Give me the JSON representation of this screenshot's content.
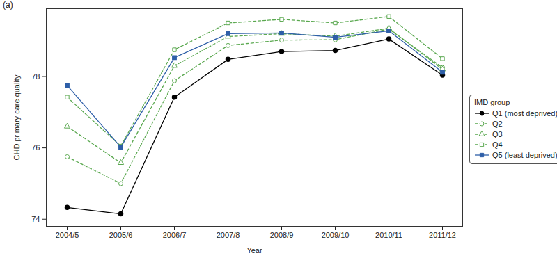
{
  "chart_data": {
    "type": "line",
    "title": "(a)",
    "x_label": "Year",
    "y_label": "CHD primary care quality",
    "legend_title": "IMD group",
    "legend": "right",
    "grid": false,
    "categories": [
      "2004/5",
      "2005/6",
      "2006/7",
      "2007/8",
      "2008/9",
      "2009/10",
      "2010/11",
      "2011/12"
    ],
    "ylim": [
      73.8,
      79.9
    ],
    "yticks": [
      74,
      76,
      78
    ],
    "series": [
      {
        "name": "Q1 (most deprived)",
        "color": "#000000",
        "marker": "circle",
        "line_style": "solid",
        "values": [
          74.33,
          74.15,
          77.42,
          78.48,
          78.7,
          78.73,
          79.05,
          78.04
        ]
      },
      {
        "name": "Q2",
        "color": "#5aa84f",
        "marker": "circle-open",
        "line_style": "dashed",
        "values": [
          75.75,
          75.0,
          77.88,
          78.87,
          79.02,
          79.03,
          79.33,
          78.25
        ]
      },
      {
        "name": "Q3",
        "color": "#5aa84f",
        "marker": "triangle-open",
        "line_style": "dashed",
        "values": [
          76.6,
          75.58,
          78.3,
          79.12,
          79.2,
          79.13,
          79.35,
          78.2
        ]
      },
      {
        "name": "Q4",
        "color": "#5aa84f",
        "marker": "square-open",
        "line_style": "dashed",
        "values": [
          77.42,
          76.05,
          78.75,
          79.5,
          79.6,
          79.5,
          79.68,
          78.5
        ]
      },
      {
        "name": "Q5 (least deprived)",
        "color": "#2e5fa8",
        "marker": "square",
        "line_style": "solid",
        "values": [
          77.75,
          76.02,
          78.53,
          79.2,
          79.22,
          79.1,
          79.28,
          78.12
        ]
      }
    ]
  }
}
